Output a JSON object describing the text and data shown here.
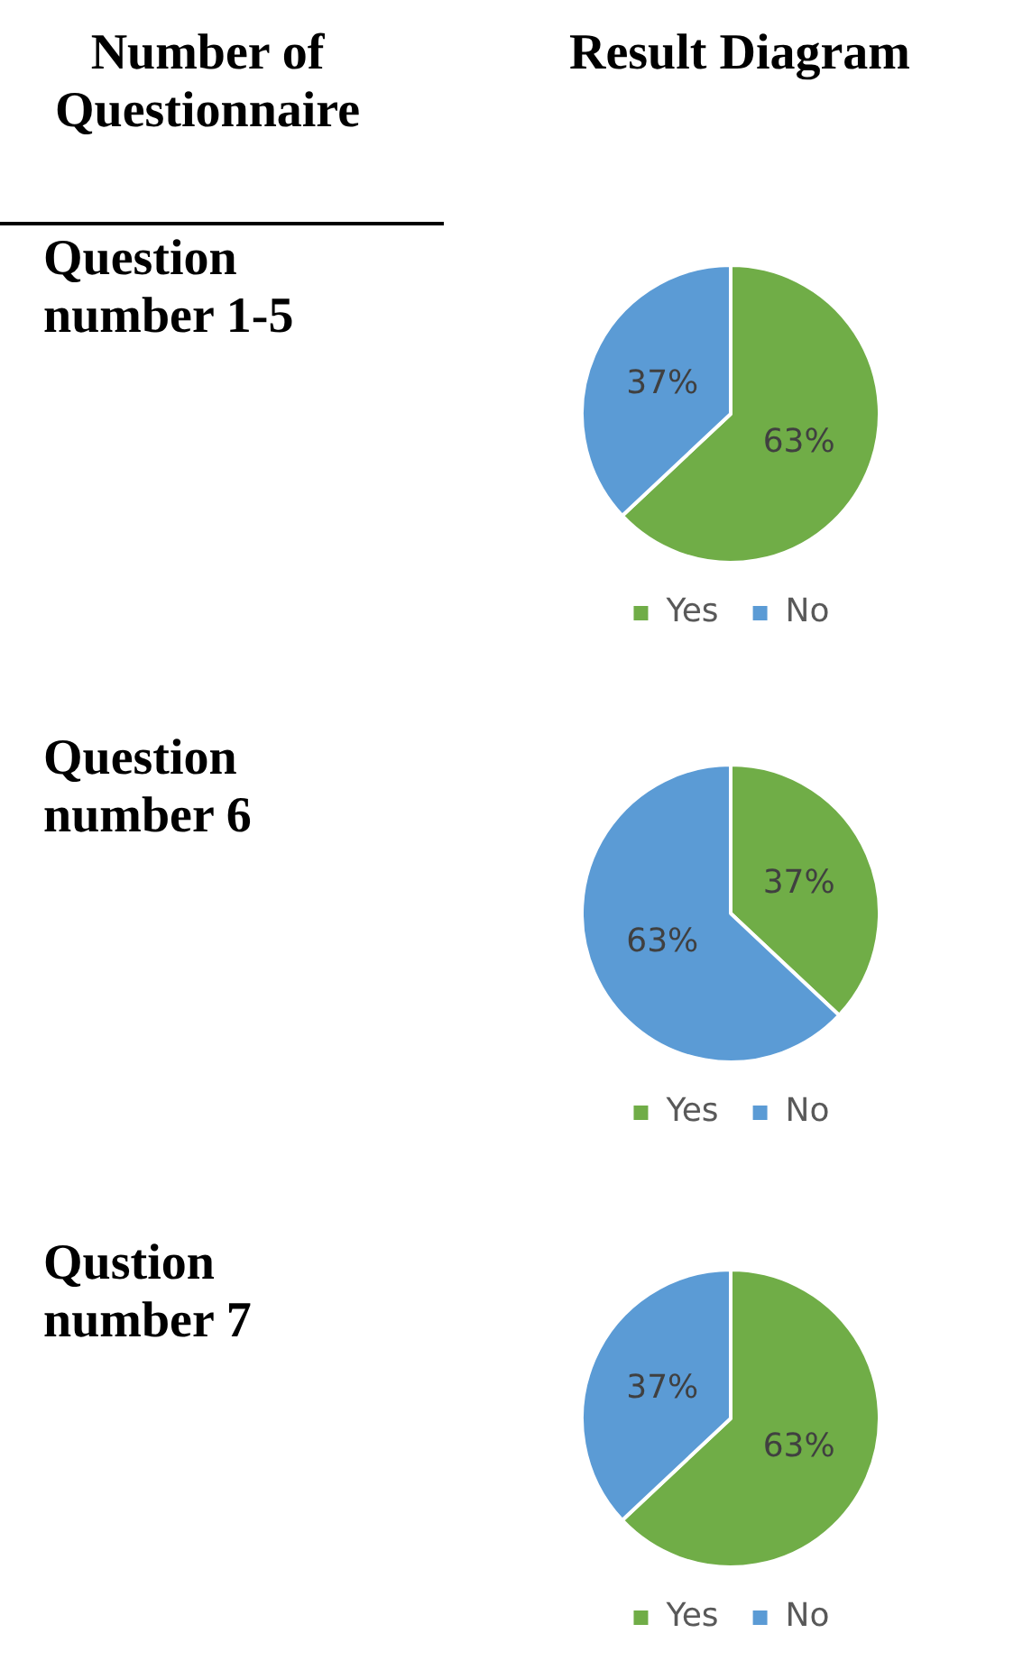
{
  "chart_data": [
    {
      "type": "pie",
      "title": "Question number 1-5",
      "annotations": [
        "Number of Questionnaire",
        "Result Diagram"
      ],
      "categories": [
        "Yes",
        "No"
      ],
      "values": [
        63,
        37
      ],
      "colors": [
        "#70ad47",
        "#5b9bd5"
      ],
      "value_labels": [
        "63%",
        "37%"
      ],
      "legend": "bottom"
    },
    {
      "type": "pie",
      "title": "Question number 6",
      "categories": [
        "Yes",
        "No"
      ],
      "values": [
        37,
        63
      ],
      "colors": [
        "#70ad47",
        "#5b9bd5"
      ],
      "value_labels": [
        "37%",
        "63%"
      ],
      "legend": "bottom"
    },
    {
      "type": "pie",
      "title": "Qustion number 7",
      "categories": [
        "Yes",
        "No"
      ],
      "values": [
        63,
        37
      ],
      "colors": [
        "#70ad47",
        "#5b9bd5"
      ],
      "value_labels": [
        "63%",
        "37%"
      ],
      "legend": "bottom"
    }
  ]
}
